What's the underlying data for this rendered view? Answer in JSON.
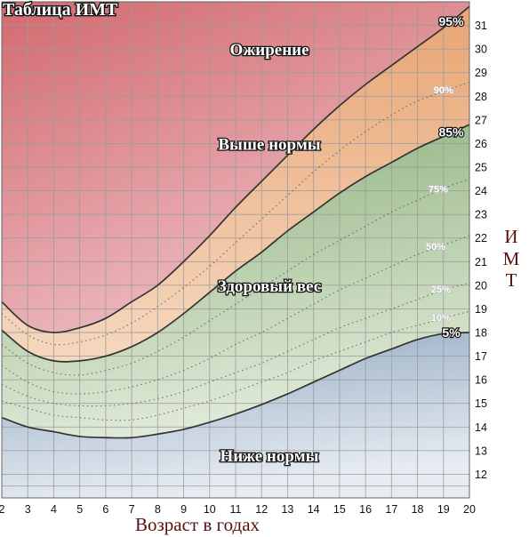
{
  "chart_data": {
    "type": "area",
    "title": "Таблица ИМТ",
    "xlabel": "Возраст в годах",
    "ylabel": "ИМТ",
    "xlim": [
      2,
      20
    ],
    "ylim": [
      11,
      32
    ],
    "x_ticks": [
      2,
      3,
      4,
      5,
      6,
      7,
      8,
      9,
      10,
      11,
      12,
      13,
      14,
      15,
      16,
      17,
      18,
      19,
      20
    ],
    "y_ticks": [
      12,
      13,
      14,
      15,
      16,
      17,
      18,
      19,
      20,
      21,
      22,
      23,
      24,
      25,
      26,
      27,
      28,
      29,
      30,
      31
    ],
    "grid": true,
    "colors": {
      "obese_top": "#d26a6f",
      "obese_bottom": "#f7dde2",
      "over_top": "#e8a574",
      "over_bottom": "#fbecdc",
      "healthy_top": "#8bb079",
      "healthy_bottom": "#eef3e8",
      "under_top": "#8fa8c0",
      "under_bottom": "#e7ecf2",
      "grid": "#9a9a9a",
      "curve": "#333333"
    },
    "zones": [
      {
        "label": "Ожирение",
        "x": 12.3,
        "y": 30.0
      },
      {
        "label": "Выше нормы",
        "x": 12.3,
        "y": 26.0
      },
      {
        "label": "Здоровый вес",
        "x": 12.3,
        "y": 20.0
      },
      {
        "label": "Ниже нормы",
        "x": 12.3,
        "y": 12.8
      }
    ],
    "series": [
      {
        "name": "95%",
        "style": "solid",
        "x": [
          2,
          3,
          4,
          5,
          6,
          7,
          8,
          9,
          10,
          11,
          12,
          13,
          14,
          15,
          16,
          17,
          18,
          19,
          20
        ],
        "y": [
          19.3,
          18.3,
          18.0,
          18.2,
          18.6,
          19.3,
          20.0,
          21.0,
          22.1,
          23.3,
          24.4,
          25.5,
          26.6,
          27.6,
          28.5,
          29.3,
          30.1,
          30.9,
          31.8
        ]
      },
      {
        "name": "90%",
        "style": "dotted",
        "x": [
          2,
          3,
          4,
          5,
          6,
          7,
          8,
          9,
          10,
          11,
          12,
          13,
          14,
          15,
          16,
          17,
          18,
          19,
          20
        ],
        "y": [
          18.8,
          17.9,
          17.5,
          17.6,
          17.9,
          18.4,
          19.1,
          19.9,
          20.8,
          21.8,
          22.8,
          23.8,
          24.8,
          25.7,
          26.5,
          27.2,
          27.8,
          28.2,
          28.6
        ]
      },
      {
        "name": "85%",
        "style": "solid",
        "x": [
          2,
          3,
          4,
          5,
          6,
          7,
          8,
          9,
          10,
          11,
          12,
          13,
          14,
          15,
          16,
          17,
          18,
          19,
          20
        ],
        "y": [
          18.1,
          17.2,
          16.8,
          16.8,
          17.0,
          17.4,
          18.0,
          18.8,
          19.7,
          20.6,
          21.4,
          22.3,
          23.1,
          23.9,
          24.6,
          25.2,
          25.8,
          26.3,
          26.8
        ]
      },
      {
        "name": "75%",
        "style": "dotted",
        "x": [
          2,
          3,
          4,
          5,
          6,
          7,
          8,
          9,
          10,
          11,
          12,
          13,
          14,
          15,
          16,
          17,
          18,
          19,
          20
        ],
        "y": [
          17.5,
          16.7,
          16.3,
          16.2,
          16.4,
          16.7,
          17.2,
          17.8,
          18.5,
          19.2,
          19.9,
          20.6,
          21.3,
          21.9,
          22.5,
          23.1,
          23.6,
          24.1,
          24.5
        ]
      },
      {
        "name": "50%",
        "style": "dotted",
        "x": [
          2,
          3,
          4,
          5,
          6,
          7,
          8,
          9,
          10,
          11,
          12,
          13,
          14,
          15,
          16,
          17,
          18,
          19,
          20
        ],
        "y": [
          16.6,
          15.9,
          15.5,
          15.4,
          15.5,
          15.7,
          16.0,
          16.4,
          16.9,
          17.5,
          18.0,
          18.6,
          19.2,
          19.8,
          20.3,
          20.8,
          21.3,
          21.7,
          22.1
        ]
      },
      {
        "name": "25%",
        "style": "dotted",
        "x": [
          2,
          3,
          4,
          5,
          6,
          7,
          8,
          9,
          10,
          11,
          12,
          13,
          14,
          15,
          16,
          17,
          18,
          19,
          20
        ],
        "y": [
          15.8,
          15.3,
          15.0,
          14.9,
          14.9,
          15.0,
          15.2,
          15.5,
          15.9,
          16.3,
          16.7,
          17.2,
          17.7,
          18.2,
          18.6,
          19.0,
          19.4,
          19.8,
          20.1
        ]
      },
      {
        "name": "10%",
        "style": "dotted",
        "x": [
          2,
          3,
          4,
          5,
          6,
          7,
          8,
          9,
          10,
          11,
          12,
          13,
          14,
          15,
          16,
          17,
          18,
          19,
          20
        ],
        "y": [
          15.1,
          14.8,
          14.5,
          14.4,
          14.3,
          14.3,
          14.5,
          14.8,
          15.1,
          15.5,
          15.9,
          16.3,
          16.8,
          17.2,
          17.6,
          18.0,
          18.3,
          18.6,
          18.9
        ]
      },
      {
        "name": "5%",
        "style": "solid",
        "x": [
          2,
          3,
          4,
          5,
          6,
          7,
          8,
          9,
          10,
          11,
          12,
          13,
          14,
          15,
          16,
          17,
          18,
          19,
          20
        ],
        "y": [
          14.4,
          14.0,
          13.8,
          13.6,
          13.55,
          13.55,
          13.7,
          13.9,
          14.2,
          14.55,
          14.95,
          15.4,
          15.9,
          16.4,
          16.9,
          17.3,
          17.7,
          17.95,
          18.0
        ]
      }
    ]
  }
}
